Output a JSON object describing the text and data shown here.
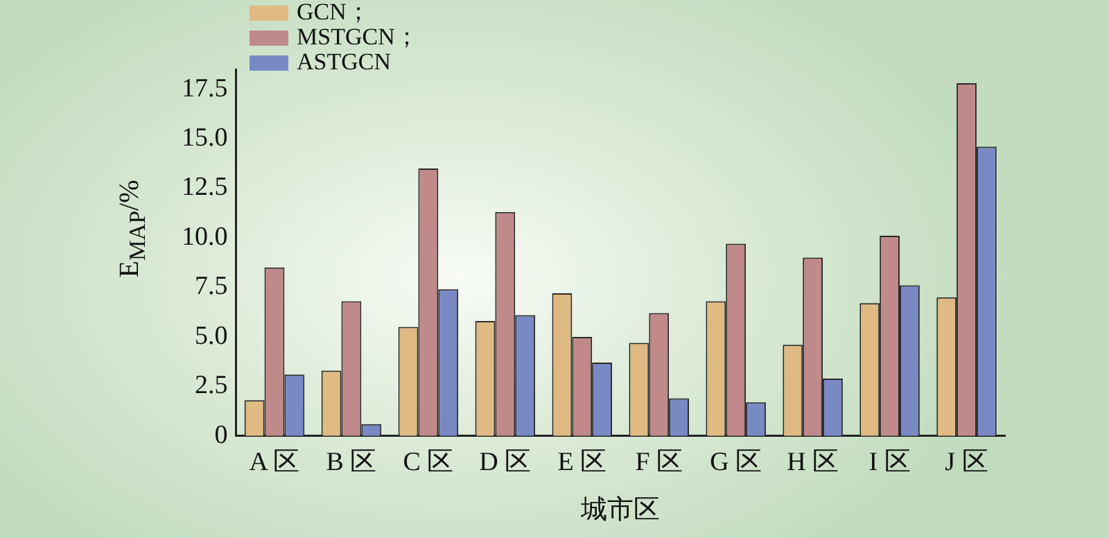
{
  "chart_data": {
    "type": "bar",
    "xlabel": "城市区",
    "ylabel": "E$_{MAP}$/%",
    "categories": [
      "A 区",
      "B 区",
      "C 区",
      "D 区",
      "E 区",
      "F 区",
      "G 区",
      "H 区",
      "I 区",
      "J 区"
    ],
    "series": [
      {
        "name": "GCN；",
        "color": "#dfba82",
        "values": [
          1.8,
          3.3,
          5.5,
          5.8,
          7.2,
          4.7,
          6.8,
          4.6,
          6.7,
          7.0
        ]
      },
      {
        "name": "MSTGCN；",
        "color": "#c08a8a",
        "values": [
          8.5,
          6.8,
          13.5,
          11.3,
          5.0,
          6.2,
          9.7,
          9.0,
          10.1,
          17.8
        ]
      },
      {
        "name": "ASTGCN",
        "color": "#7889c4",
        "values": [
          3.1,
          0.6,
          7.4,
          6.1,
          3.7,
          1.9,
          1.7,
          2.9,
          7.6,
          14.6
        ]
      }
    ],
    "ylim": [
      0,
      18.5
    ],
    "yticks": [
      0,
      2.5,
      {
        "value": 5,
        "label": "5.0"
      },
      7.5,
      {
        "value": 10,
        "label": "10.0"
      },
      12.5,
      {
        "value": 15,
        "label": "15.0"
      },
      17.5
    ],
    "grid": false,
    "legend": "top left"
  }
}
